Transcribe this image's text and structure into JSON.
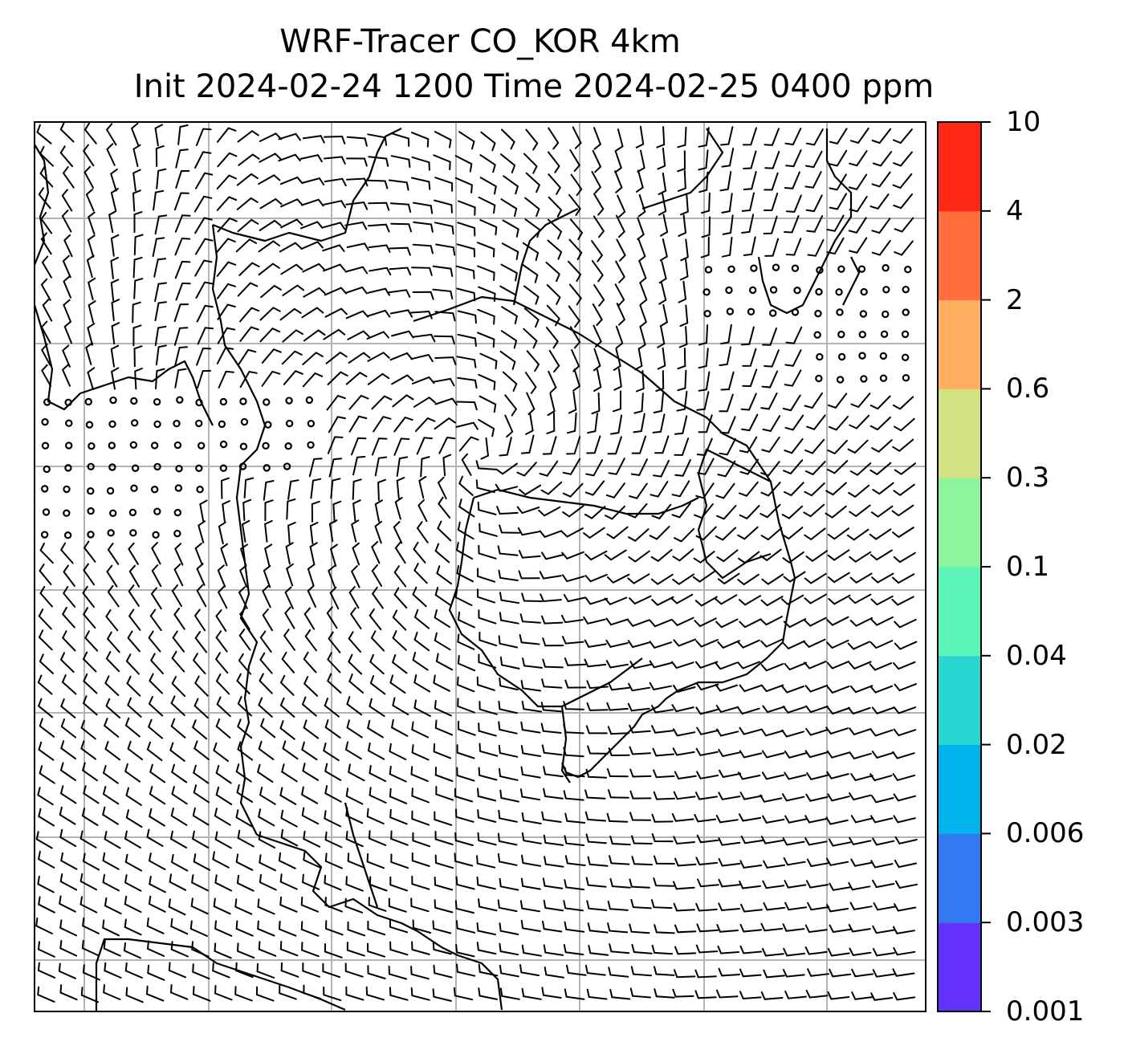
{
  "title": {
    "line1": "WRF-Tracer CO_KOR 4km",
    "line2": "Init 2024-02-24 1200 Time 2024-02-25 0400 ppm"
  },
  "colorbar": {
    "levels": [
      "0.001",
      "0.003",
      "0.006",
      "0.02",
      "0.04",
      "0.1",
      "0.3",
      "0.6",
      "2",
      "4",
      "10"
    ],
    "colors": [
      "#6432fa",
      "#3278f0",
      "#00b4eb",
      "#28d7d2",
      "#5af5b9",
      "#8cf59b",
      "#d2e182",
      "#ffaf5f",
      "#ff6e3c",
      "#ff2814"
    ]
  },
  "map": {
    "features": [
      "coastlines",
      "lat-lon-gridlines",
      "wind-barbs",
      "calm-wind-circles"
    ],
    "colors": {
      "coast": "#000000",
      "grid": "#b3b3b3",
      "frame": "#000000"
    }
  }
}
